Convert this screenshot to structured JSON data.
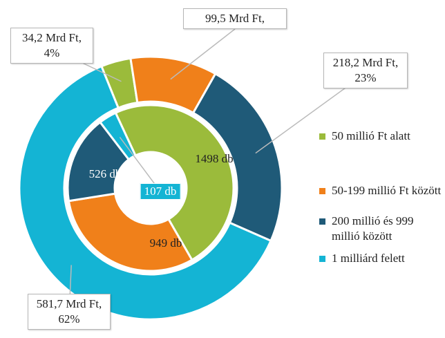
{
  "chart_data": {
    "type": "donut",
    "categories": [
      "50 millió Ft alatt",
      "50-199 millió Ft között",
      "200 millió és 999 millió között",
      "1 milliárd felett"
    ],
    "colors": [
      "#9bbb3b",
      "#f0801a",
      "#1f5a78",
      "#14b4d4"
    ],
    "rings": [
      {
        "values": [
          34.2,
          99.5,
          218.2,
          581.7
        ],
        "value_labels": [
          "34,2 Mrd Ft, 4%",
          "99,5 Mrd Ft,",
          "218,2 Mrd Ft, 23%",
          "581,7 Mrd Ft, 62%"
        ]
      },
      {
        "values": [
          1498,
          949,
          526,
          107
        ],
        "value_labels": [
          "1498 db",
          "949 db",
          "526 db",
          "107 db"
        ]
      }
    ]
  }
}
